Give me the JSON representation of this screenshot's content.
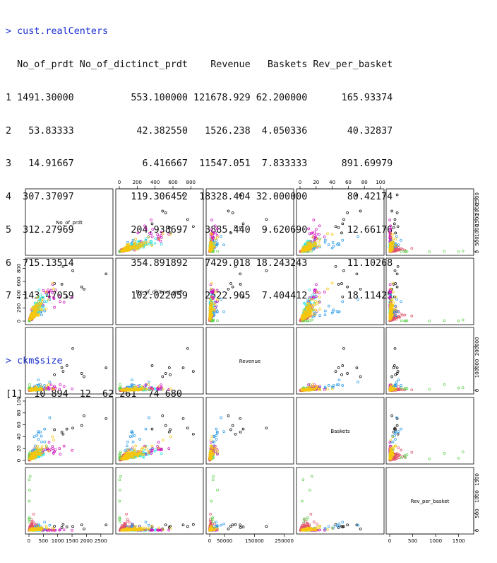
{
  "console": {
    "commands": [
      {
        "prompt": ">",
        "text": "cust.realCenters"
      },
      {
        "prompt": ">",
        "text": "ckm$size"
      }
    ],
    "centers_header": "  No_of_prdt No_of_dictinct_prdt    Revenue   Baskets Rev_per_basket",
    "centers_rows": [
      "1 1491.30000          553.100000 121678.929 62.200000      165.93374",
      "2   53.83333           42.382550   1526.238  4.050336       40.32837",
      "3   14.91667            6.416667  11547.051  7.833333      891.69979",
      "4  307.37097          119.306452  18328.404 32.000000       80.42174",
      "5  312.27969          204.938697   3885.440  9.620690       12.66176",
      "6  715.13514          354.891892   7429.018 18.243243       11.10268",
      "7  143.47059          102.022059   2522.905  7.404412       18.11425"
    ],
    "size_output": "[1]  10 894  12  62 261  74 680"
  },
  "chart_data": {
    "type": "scatter",
    "variables": [
      "No_of_prdt",
      "No_of_dictinct_prdt",
      "Revenue",
      "Baskets",
      "Rev_per_basket"
    ],
    "diagonal_labels": [
      "No_of_prdt",
      "No_of_dictinct_prdt",
      "Revenue",
      "Baskets",
      "Rev_per_basket"
    ],
    "axis_ranges": [
      [
        0,
        2800
      ],
      [
        0,
        900
      ],
      [
        0,
        270000
      ],
      [
        0,
        100
      ],
      [
        0,
        1750
      ]
    ],
    "ticks": [
      {
        "values": [
          0,
          500,
          1000,
          1500,
          2000,
          2500
        ],
        "labels": [
          "0",
          "500",
          "1000",
          "1500",
          "2000",
          "2500"
        ]
      },
      {
        "values": [
          0,
          200,
          400,
          600,
          800
        ],
        "labels": [
          "0",
          "200",
          "400",
          "600",
          "800"
        ]
      },
      {
        "values": [
          0,
          50000,
          150000,
          250000
        ],
        "labels": [
          "0",
          "50000",
          "150000",
          "250000"
        ],
        "side_values": [
          0,
          100000,
          200000
        ],
        "side_labels": [
          "0",
          "100000",
          "200000"
        ]
      },
      {
        "values": [
          0,
          20,
          40,
          60,
          80,
          100
        ],
        "labels": [
          "0",
          "20",
          "40",
          "60",
          "80",
          "100"
        ]
      },
      {
        "values": [
          0,
          500,
          1000,
          1500
        ],
        "labels": [
          "0",
          "500",
          "1000",
          "1500"
        ]
      }
    ],
    "cluster_colors": [
      "#000000",
      "#df536b",
      "#61d04f",
      "#2297e6",
      "#28e2e5",
      "#cd0bbc",
      "#f5c710"
    ],
    "cluster_centers": [
      [
        1491.3,
        553.1,
        121678.929,
        62.2,
        165.93374
      ],
      [
        53.83333,
        42.38255,
        1526.238,
        4.050336,
        40.32837
      ],
      [
        14.91667,
        6.416667,
        11547.051,
        7.833333,
        891.69979
      ],
      [
        307.37097,
        119.306452,
        18328.404,
        32.0,
        80.42174
      ],
      [
        312.27969,
        204.938697,
        3885.44,
        9.62069,
        12.66176
      ],
      [
        715.13514,
        354.891892,
        7429.018,
        18.243243,
        11.10268
      ],
      [
        143.47059,
        102.022059,
        2522.905,
        7.404412,
        18.11425
      ]
    ],
    "cluster_sizes": [
      10,
      894,
      12,
      62,
      261,
      74,
      680
    ],
    "grid": false
  }
}
